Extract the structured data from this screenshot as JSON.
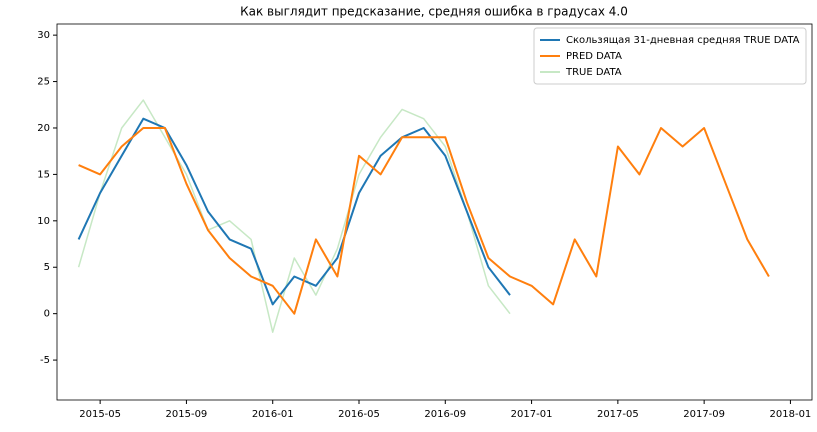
{
  "chart_data": {
    "type": "line",
    "title": "Как выглядит предсказание, средняя ошибка в градусах 4.0",
    "x": [
      "2015-04",
      "2015-05",
      "2015-06",
      "2015-07",
      "2015-08",
      "2015-09",
      "2015-10",
      "2015-11",
      "2015-12",
      "2016-01",
      "2016-02",
      "2016-03",
      "2016-04",
      "2016-05",
      "2016-06",
      "2016-07",
      "2016-08",
      "2016-09",
      "2016-10",
      "2016-11",
      "2016-12",
      "2017-01",
      "2017-02",
      "2017-03",
      "2017-04",
      "2017-05",
      "2017-06",
      "2017-07",
      "2017-08",
      "2017-09",
      "2017-10",
      "2017-11",
      "2017-12"
    ],
    "series": [
      {
        "name": "TRUE DATA",
        "color": "#c7e8c5",
        "values": [
          5,
          13,
          20,
          23,
          19,
          15,
          9,
          10,
          8,
          -2,
          6,
          2,
          7,
          15,
          19,
          22,
          21,
          18,
          11,
          3,
          0,
          null,
          null,
          null,
          null,
          null,
          null,
          null,
          null,
          null,
          null,
          null,
          null
        ]
      },
      {
        "name": "Скользящая 31-дневная средняя TRUE DATA",
        "color": "#1f77b4",
        "values": [
          8,
          13,
          17,
          21,
          20,
          16,
          11,
          8,
          7,
          1,
          4,
          3,
          6,
          13,
          17,
          19,
          20,
          17,
          11,
          5,
          2,
          null,
          null,
          null,
          null,
          null,
          null,
          null,
          null,
          null,
          null,
          null,
          null
        ]
      },
      {
        "name": "PRED DATA",
        "color": "#ff7f0e",
        "values": [
          16,
          15,
          18,
          20,
          20,
          14,
          9,
          6,
          4,
          3,
          0,
          8,
          4,
          17,
          15,
          19,
          19,
          19,
          12,
          6,
          4,
          3,
          1,
          8,
          4,
          18,
          15,
          20,
          18,
          20,
          14,
          8,
          4
        ]
      }
    ],
    "legend_order": [
      1,
      2,
      0
    ],
    "xlim": [
      "2015-03",
      "2018-02"
    ],
    "xticks": [
      "2015-05",
      "2015-09",
      "2016-01",
      "2016-05",
      "2016-09",
      "2017-01",
      "2017-05",
      "2017-09",
      "2018-01"
    ],
    "ylim": [
      -9.3,
      31.2
    ],
    "yticks": [
      -5,
      0,
      5,
      10,
      15,
      20,
      25,
      30
    ],
    "grid": false,
    "legend": "upper right"
  }
}
